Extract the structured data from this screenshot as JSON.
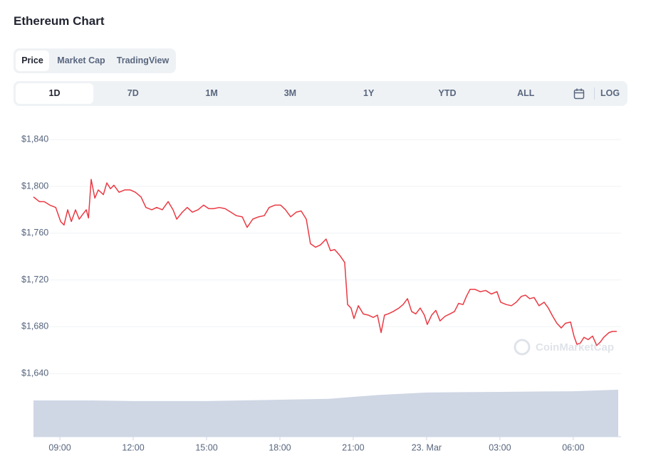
{
  "header": {
    "title": "Ethereum Chart"
  },
  "tabs": {
    "items": [
      "Price",
      "Market Cap",
      "TradingView"
    ],
    "active": 0
  },
  "ranges": {
    "items": [
      "1D",
      "7D",
      "1M",
      "3M",
      "1Y",
      "YTD",
      "ALL"
    ],
    "active": 0,
    "log": "LOG"
  },
  "watermark": "CoinMarketCap",
  "chart_data": {
    "type": "line",
    "xlim": [
      7.92,
      31.84
    ],
    "xticks": [
      {
        "value": 9,
        "label": "09:00"
      },
      {
        "value": 12,
        "label": "12:00"
      },
      {
        "value": 15,
        "label": "15:00"
      },
      {
        "value": 18,
        "label": "18:00"
      },
      {
        "value": 21,
        "label": "21:00"
      },
      {
        "value": 24,
        "label": "23. Mar"
      },
      {
        "value": 27,
        "label": "03:00"
      },
      {
        "value": 30,
        "label": "06:00"
      }
    ],
    "ylim": [
      1586,
      1856
    ],
    "yticks": [
      {
        "value": 1640,
        "label": "$1,640"
      },
      {
        "value": 1680,
        "label": "$1,680"
      },
      {
        "value": 1720,
        "label": "$1,720"
      },
      {
        "value": 1760,
        "label": "$1,760"
      },
      {
        "value": 1800,
        "label": "$1,800"
      },
      {
        "value": 1840,
        "label": "$1,840"
      }
    ],
    "y2lim": [
      0,
      100
    ],
    "grid": true,
    "series": [
      {
        "color": "#ea3943",
        "x": [
          7.92,
          8.16,
          8.36,
          8.59,
          8.83,
          9.03,
          9.17,
          9.32,
          9.47,
          9.64,
          9.79,
          9.93,
          10.08,
          10.17,
          10.28,
          10.43,
          10.57,
          10.78,
          10.92,
          11.07,
          11.21,
          11.42,
          11.65,
          11.88,
          12.09,
          12.32,
          12.52,
          12.76,
          12.96,
          13.19,
          13.43,
          13.63,
          13.78,
          14.01,
          14.21,
          14.42,
          14.65,
          14.88,
          15.09,
          15.29,
          15.52,
          15.76,
          15.99,
          16.22,
          16.46,
          16.66,
          16.89,
          17.13,
          17.36,
          17.56,
          17.8,
          18.03,
          18.23,
          18.44,
          18.67,
          18.87,
          19.08,
          19.25,
          19.46,
          19.66,
          19.89,
          20.07,
          20.24,
          20.45,
          20.65,
          20.77,
          20.91,
          21.03,
          21.21,
          21.41,
          21.61,
          21.82,
          21.99,
          22.14,
          22.28,
          22.43,
          22.63,
          22.87,
          23.04,
          23.22,
          23.39,
          23.56,
          23.74,
          23.91,
          24.03,
          24.21,
          24.38,
          24.55,
          24.76,
          24.96,
          25.14,
          25.31,
          25.49,
          25.63,
          25.78,
          25.98,
          26.19,
          26.42,
          26.65,
          26.88,
          27.03,
          27.26,
          27.47,
          27.67,
          27.88,
          28.05,
          28.22,
          28.4,
          28.6,
          28.81,
          28.98,
          29.16,
          29.33,
          29.51,
          29.68,
          29.89,
          30.03,
          30.15,
          30.29,
          30.44,
          30.61,
          30.79,
          30.96,
          31.11,
          31.25,
          31.46,
          31.6,
          31.78
        ],
        "values": [
          1791,
          1787,
          1787,
          1784,
          1782,
          1770,
          1767,
          1780,
          1770,
          1780,
          1772,
          1776,
          1780,
          1773,
          1806,
          1790,
          1797,
          1793,
          1803,
          1798,
          1801,
          1795,
          1797,
          1797,
          1795,
          1791,
          1782,
          1780,
          1782,
          1780,
          1787,
          1780,
          1772,
          1778,
          1782,
          1778,
          1780,
          1784,
          1781,
          1781,
          1782,
          1781,
          1778,
          1775,
          1774,
          1765,
          1772,
          1774,
          1775,
          1782,
          1784,
          1784,
          1780,
          1774,
          1778,
          1779,
          1772,
          1751,
          1748,
          1750,
          1755,
          1745,
          1746,
          1741,
          1735,
          1699,
          1696,
          1687,
          1698,
          1691,
          1690,
          1688,
          1690,
          1675,
          1690,
          1691,
          1693,
          1696,
          1699,
          1704,
          1693,
          1691,
          1696,
          1690,
          1682,
          1690,
          1694,
          1685,
          1689,
          1691,
          1693,
          1700,
          1699,
          1706,
          1712,
          1712,
          1710,
          1711,
          1708,
          1710,
          1701,
          1699,
          1698,
          1701,
          1706,
          1707,
          1704,
          1705,
          1698,
          1701,
          1696,
          1689,
          1683,
          1679,
          1683,
          1684,
          1672,
          1665,
          1666,
          1671,
          1669,
          1672,
          1664,
          1667,
          1671,
          1675,
          1676,
          1676
        ]
      },
      {
        "color": "#cfd6e4",
        "axis": "y2",
        "fill": true,
        "x": [
          7.92,
          10,
          12,
          15,
          18,
          20,
          21,
          22,
          24,
          27,
          30,
          31.84
        ],
        "values": [
          11.5,
          11.5,
          11.3,
          11.3,
          11.7,
          12.0,
          12.6,
          13.2,
          14.0,
          14.2,
          14.4,
          14.9
        ]
      }
    ]
  }
}
